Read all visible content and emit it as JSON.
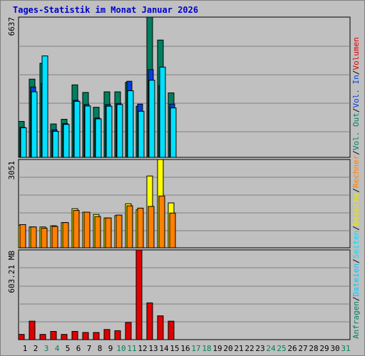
{
  "title": "Tages-Statistik im Monat Januar 2026",
  "chart_data": [
    {
      "type": "bar",
      "panel": "requests-files-pages",
      "y_max_label": "6637",
      "ylim": [
        0,
        6637
      ],
      "categories": [
        "1",
        "2",
        "3",
        "4",
        "5",
        "6",
        "7",
        "8",
        "9",
        "10",
        "11",
        "12",
        "13",
        "14",
        "15",
        "16",
        "17",
        "18",
        "19",
        "20",
        "21",
        "22",
        "23",
        "24",
        "25",
        "26",
        "27",
        "28",
        "29",
        "30",
        "31"
      ],
      "weekend_days": [
        "3",
        "4",
        "10",
        "11",
        "17",
        "18",
        "24",
        "25",
        "31"
      ],
      "series": [
        {
          "name": "Anfragen",
          "color": "#008060",
          "values": [
            1700,
            3700,
            4450,
            1580,
            1800,
            3430,
            3070,
            2370,
            3100,
            3100,
            3550,
            2420,
            6637,
            5550,
            3050,
            0,
            0,
            0,
            0,
            0,
            0,
            0,
            0,
            0,
            0,
            0,
            0,
            0,
            0,
            0,
            0
          ]
        },
        {
          "name": "Seiten",
          "color": "#0040e0",
          "values": [
            1420,
            3330,
            3510,
            1300,
            1600,
            2700,
            2500,
            1860,
            2500,
            2550,
            3600,
            2520,
            4150,
            3400,
            2520,
            0,
            0,
            0,
            0,
            0,
            0,
            0,
            0,
            0,
            0,
            0,
            0,
            0,
            0,
            0,
            0
          ]
        },
        {
          "name": "Dateien",
          "color": "#00e0ff",
          "values": [
            1400,
            3100,
            4800,
            1230,
            1560,
            2650,
            2430,
            1820,
            2420,
            2500,
            3150,
            2180,
            3650,
            4270,
            2340,
            0,
            0,
            0,
            0,
            0,
            0,
            0,
            0,
            0,
            0,
            0,
            0,
            0,
            0,
            0,
            0
          ]
        }
      ]
    },
    {
      "type": "bar",
      "panel": "visits-hosts",
      "y_max_label": "3051",
      "ylim": [
        0,
        3051
      ],
      "series": [
        {
          "name": "Besuche",
          "color": "#ffff00",
          "values": [
            780,
            720,
            720,
            760,
            870,
            1350,
            1230,
            1150,
            1030,
            1110,
            1520,
            1310,
            2480,
            3051,
            1550,
            0,
            0,
            0,
            0,
            0,
            0,
            0,
            0,
            0,
            0,
            0,
            0,
            0,
            0,
            0,
            0
          ]
        },
        {
          "name": "Rechner",
          "color": "#ff8000",
          "values": [
            800,
            720,
            680,
            740,
            870,
            1290,
            1230,
            1080,
            1030,
            1130,
            1450,
            1370,
            1430,
            1790,
            1200,
            0,
            0,
            0,
            0,
            0,
            0,
            0,
            0,
            0,
            0,
            0,
            0,
            0,
            0,
            0,
            0
          ]
        }
      ]
    },
    {
      "type": "bar",
      "panel": "volume",
      "y_max_label": "603.21 MB",
      "ylim": [
        0,
        603.21
      ],
      "series": [
        {
          "name": "Volumen",
          "color": "#e00000",
          "values": [
            35,
            124,
            35,
            55,
            35,
            55,
            48,
            48,
            68,
            60,
            115,
            603.21,
            247,
            160,
            124,
            0,
            0,
            0,
            0,
            0,
            0,
            0,
            0,
            0,
            0,
            0,
            0,
            0,
            0,
            0,
            0
          ]
        }
      ]
    }
  ],
  "right_legend": [
    {
      "text": "Anfragen",
      "color": "#008060"
    },
    {
      "text": "/",
      "color": "#000000"
    },
    {
      "text": "Dateien",
      "color": "#00c8ff"
    },
    {
      "text": "/",
      "color": "#000000"
    },
    {
      "text": "Seiten",
      "color": "#00e0ff"
    },
    {
      "text": "/",
      "color": "#000000"
    },
    {
      "text": "Besuche",
      "color": "#e8e800"
    },
    {
      "text": "/",
      "color": "#000000"
    },
    {
      "text": "Rechner",
      "color": "#ff8000"
    },
    {
      "text": "/",
      "color": "#000000"
    },
    {
      "text": "Vol. Out",
      "color": "#008060"
    },
    {
      "text": "/",
      "color": "#000000"
    },
    {
      "text": "Vol. In",
      "color": "#0040e0"
    },
    {
      "text": "/",
      "color": "#000000"
    },
    {
      "text": "Volumen",
      "color": "#e00000"
    }
  ],
  "colors": {
    "weekday": "#000000",
    "weekend": "#00805a",
    "grid": "#808080",
    "plot_bg": "#c0c0c0"
  }
}
